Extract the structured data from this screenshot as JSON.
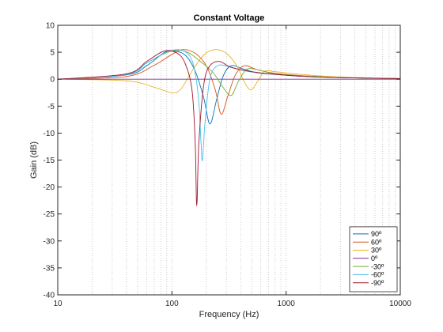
{
  "chart_data": {
    "type": "line",
    "title": "Constant Voltage",
    "xlabel": "Frequency (Hz)",
    "ylabel": "Gain (dB)",
    "x_scale": "log",
    "xlim": [
      10,
      10000
    ],
    "ylim": [
      -40,
      10
    ],
    "grid": "x-major-and-minor, dotted",
    "legend_position": "bottom-right",
    "x_ticks": [
      10,
      100,
      1000,
      10000
    ],
    "x_tick_labels": [
      "10",
      "100",
      "1000",
      "10000"
    ],
    "y_ticks": [
      -40,
      -35,
      -30,
      -25,
      -20,
      -15,
      -10,
      -5,
      0,
      5,
      10
    ],
    "y_tick_labels": [
      "-40",
      "-35",
      "-30",
      "-25",
      "-20",
      "-15",
      "-10",
      "-5",
      "0",
      "5",
      "10"
    ],
    "series": [
      {
        "name": "90º",
        "color": "#0072BD",
        "points": [
          [
            10,
            0
          ],
          [
            40,
            0.8
          ],
          [
            60,
            2.5
          ],
          [
            85,
            4.9
          ],
          [
            100,
            5.3
          ],
          [
            130,
            4.5
          ],
          [
            160,
            1.5
          ],
          [
            190,
            -3.5
          ],
          [
            215,
            -8.3
          ],
          [
            245,
            -4
          ],
          [
            280,
            0.5
          ],
          [
            330,
            2.5
          ],
          [
            420,
            1.9
          ],
          [
            550,
            1.2
          ],
          [
            800,
            0.9
          ],
          [
            1500,
            0.5
          ],
          [
            3000,
            0.3
          ],
          [
            10000,
            0.1
          ]
        ]
      },
      {
        "name": "60º",
        "color": "#D95319",
        "points": [
          [
            10,
            0
          ],
          [
            40,
            0.5
          ],
          [
            70,
            2.6
          ],
          [
            100,
            4.6
          ],
          [
            125,
            5.5
          ],
          [
            160,
            4.8
          ],
          [
            200,
            2.5
          ],
          [
            240,
            -2
          ],
          [
            270,
            -6.5
          ],
          [
            310,
            -3
          ],
          [
            360,
            0.8
          ],
          [
            430,
            2.5
          ],
          [
            550,
            1.8
          ],
          [
            800,
            1.1
          ],
          [
            1500,
            0.6
          ],
          [
            3000,
            0.3
          ],
          [
            10000,
            0.1
          ]
        ]
      },
      {
        "name": "30º",
        "color": "#EDB120",
        "points": [
          [
            10,
            0
          ],
          [
            40,
            -0.3
          ],
          [
            70,
            -1.5
          ],
          [
            100,
            -2.5
          ],
          [
            120,
            -1.8
          ],
          [
            150,
            1.5
          ],
          [
            190,
            4.5
          ],
          [
            240,
            5.5
          ],
          [
            300,
            4.8
          ],
          [
            370,
            2.5
          ],
          [
            430,
            -0.5
          ],
          [
            490,
            -2
          ],
          [
            560,
            -0.5
          ],
          [
            650,
            1.5
          ],
          [
            800,
            1.4
          ],
          [
            1500,
            0.8
          ],
          [
            3000,
            0.4
          ],
          [
            10000,
            0.1
          ]
        ]
      },
      {
        "name": "0º",
        "color": "#7E2F8E",
        "points": [
          [
            10,
            0
          ],
          [
            10000,
            0
          ]
        ]
      },
      {
        "name": "-30º",
        "color": "#77AC30",
        "points": [
          [
            10,
            0
          ],
          [
            40,
            0.9
          ],
          [
            60,
            3
          ],
          [
            85,
            4.7
          ],
          [
            110,
            5.4
          ],
          [
            140,
            4.9
          ],
          [
            180,
            3.2
          ],
          [
            230,
            1.2
          ],
          [
            280,
            -1.5
          ],
          [
            330,
            -3
          ],
          [
            380,
            -0.5
          ],
          [
            450,
            1.8
          ],
          [
            550,
            1.8
          ],
          [
            800,
            1.0
          ],
          [
            1500,
            0.6
          ],
          [
            3000,
            0.3
          ],
          [
            10000,
            0.1
          ]
        ]
      },
      {
        "name": "-60º",
        "color": "#4DBEEE",
        "points": [
          [
            10,
            0
          ],
          [
            40,
            0.9
          ],
          [
            60,
            3
          ],
          [
            90,
            5
          ],
          [
            120,
            5.4
          ],
          [
            150,
            3.5
          ],
          [
            170,
            -3
          ],
          [
            180,
            -12
          ],
          [
            185,
            -15
          ],
          [
            195,
            -8
          ],
          [
            215,
            0
          ],
          [
            250,
            2.5
          ],
          [
            320,
            2.3
          ],
          [
            450,
            1.5
          ],
          [
            700,
            1.0
          ],
          [
            1500,
            0.5
          ],
          [
            3000,
            0.3
          ],
          [
            10000,
            0.1
          ]
        ]
      },
      {
        "name": "-90º",
        "color": "#A2142F",
        "points": [
          [
            10,
            0
          ],
          [
            40,
            1
          ],
          [
            60,
            3.3
          ],
          [
            85,
            5.2
          ],
          [
            110,
            4.9
          ],
          [
            130,
            3
          ],
          [
            150,
            -2
          ],
          [
            160,
            -12
          ],
          [
            165,
            -23.5
          ],
          [
            172,
            -12
          ],
          [
            190,
            -1
          ],
          [
            215,
            2.5
          ],
          [
            260,
            3.3
          ],
          [
            330,
            2.2
          ],
          [
            500,
            1.4
          ],
          [
            800,
            0.9
          ],
          [
            1500,
            0.5
          ],
          [
            3000,
            0.3
          ],
          [
            10000,
            0.1
          ]
        ]
      }
    ]
  }
}
